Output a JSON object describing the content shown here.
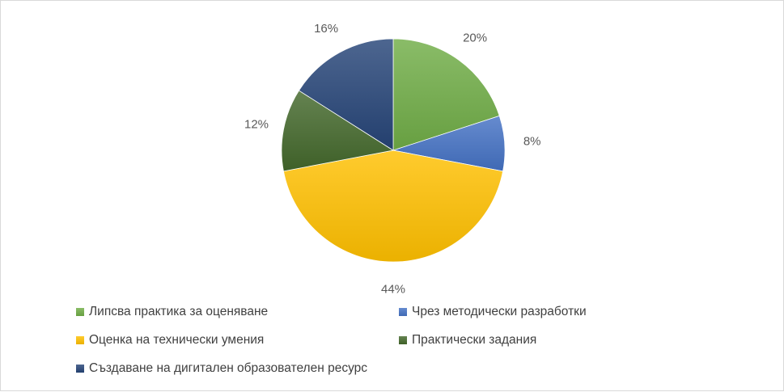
{
  "chart_data": {
    "type": "pie",
    "title": "",
    "slices": [
      {
        "label": "Липсва практика за оценяване",
        "value": 20,
        "value_label": "20%",
        "color": "#70ad47"
      },
      {
        "label": "Чрез методически разработки",
        "value": 8,
        "value_label": "8%",
        "color": "#4472c4"
      },
      {
        "label": "Оценка на технически умения",
        "value": 44,
        "value_label": "44%",
        "color": "#ffc000"
      },
      {
        "label": "Практически задания",
        "value": 12,
        "value_label": "12%",
        "color": "#43682b"
      },
      {
        "label": "Създаване на дигитален образователен ресурс",
        "value": 16,
        "value_label": "16%",
        "color": "#264478"
      }
    ],
    "legend_position": "bottom"
  }
}
